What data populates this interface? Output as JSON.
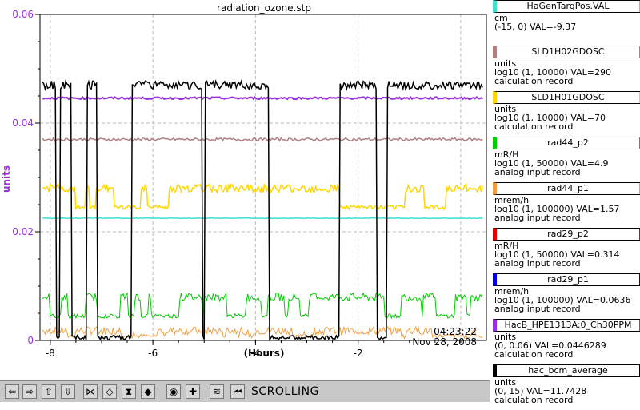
{
  "chart_data": {
    "type": "line",
    "title": "radiation_ozone.stp",
    "xlabel": "(Hours)",
    "ylabel": "units",
    "x_ticks": [
      "-8",
      "-6",
      "-4",
      "-2"
    ],
    "y_ticks": [
      "0",
      "0.02",
      "0.04",
      "0.06"
    ],
    "xlim": [
      -8.2,
      0.5
    ],
    "ylim": [
      0,
      0.06
    ],
    "grid": true,
    "time_label": "04:23:22",
    "date_label": "Nov 28, 2008",
    "series": [
      {
        "name": "HaGenTargPos.VAL",
        "color": "#40e0d0",
        "level": 0.0225
      },
      {
        "name": "SLD1H02GDOSC",
        "color": "#b08080",
        "level": 0.037
      },
      {
        "name": "SLD1H01GDOSC",
        "color": "#ffd700",
        "level": 0.028
      },
      {
        "name": "HacB_HPE1313A:0_Ch30PPM",
        "color": "#9a30e0",
        "level": 0.0446
      },
      {
        "name": "hac_bcm_average",
        "color": "#000000",
        "level": 0.047
      }
    ]
  },
  "legend": [
    {
      "name": "HaGenTargPos.VAL",
      "color": "#40e0d0",
      "unit": "cm",
      "range": "(-15, 0) VAL=-9.37",
      "record": ""
    },
    {
      "name": "SLD1H02GDOSC",
      "color": "#b08080",
      "unit": "units",
      "range": "log10 (1, 10000) VAL=290",
      "record": "calculation record"
    },
    {
      "name": "SLD1H01GDOSC",
      "color": "#ffd700",
      "unit": "units",
      "range": "log10 (1, 10000) VAL=70",
      "record": "calculation record"
    },
    {
      "name": "rad44_p2",
      "color": "#00cc00",
      "unit": "mR/H",
      "range": "log10 (1, 50000) VAL=4.9",
      "record": "analog input record"
    },
    {
      "name": "rad44_p1",
      "color": "#f0a040",
      "unit": "mrem/h",
      "range": "log10 (1, 100000) VAL=1.57",
      "record": "analog input record"
    },
    {
      "name": "rad29_p2",
      "color": "#e00000",
      "unit": "mR/H",
      "range": "log10 (1, 50000) VAL=0.314",
      "record": "analog input record"
    },
    {
      "name": "rad29_p1",
      "color": "#0000e0",
      "unit": "mrem/h",
      "range": "log10 (1, 100000) VAL=0.0636",
      "record": "analog input record"
    },
    {
      "name": "HacB_HPE1313A:0_Ch30PPM",
      "color": "#9a30e0",
      "unit": "units",
      "range": "(0, 0.06) VAL=0.0446289",
      "record": "calculation record"
    },
    {
      "name": "hac_bcm_average",
      "color": "#000000",
      "unit": "units",
      "range": "(0, 15) VAL=11.7428",
      "record": "calculation record"
    }
  ],
  "toolbar": {
    "status": "SCROLLING",
    "buttons": [
      {
        "icon": "arrow-left-icon",
        "glyph": "⇦"
      },
      {
        "icon": "arrow-right-icon",
        "glyph": "⇨"
      },
      {
        "icon": "arrow-up-icon",
        "glyph": "⇧"
      },
      {
        "icon": "arrow-down-icon",
        "glyph": "⇩"
      },
      {
        "icon": "expand-horizontal-icon",
        "glyph": "⋈"
      },
      {
        "icon": "compress-horizontal-icon",
        "glyph": "◇"
      },
      {
        "icon": "expand-vertical-icon",
        "glyph": "⧗"
      },
      {
        "icon": "compress-vertical-icon",
        "glyph": "◆"
      },
      {
        "icon": "zoom-reset-icon",
        "glyph": "◉"
      },
      {
        "icon": "zoom-in-icon",
        "glyph": "✚"
      },
      {
        "icon": "trend-icon",
        "glyph": "≋"
      },
      {
        "icon": "scroll-live-icon",
        "glyph": "⏮"
      }
    ]
  }
}
